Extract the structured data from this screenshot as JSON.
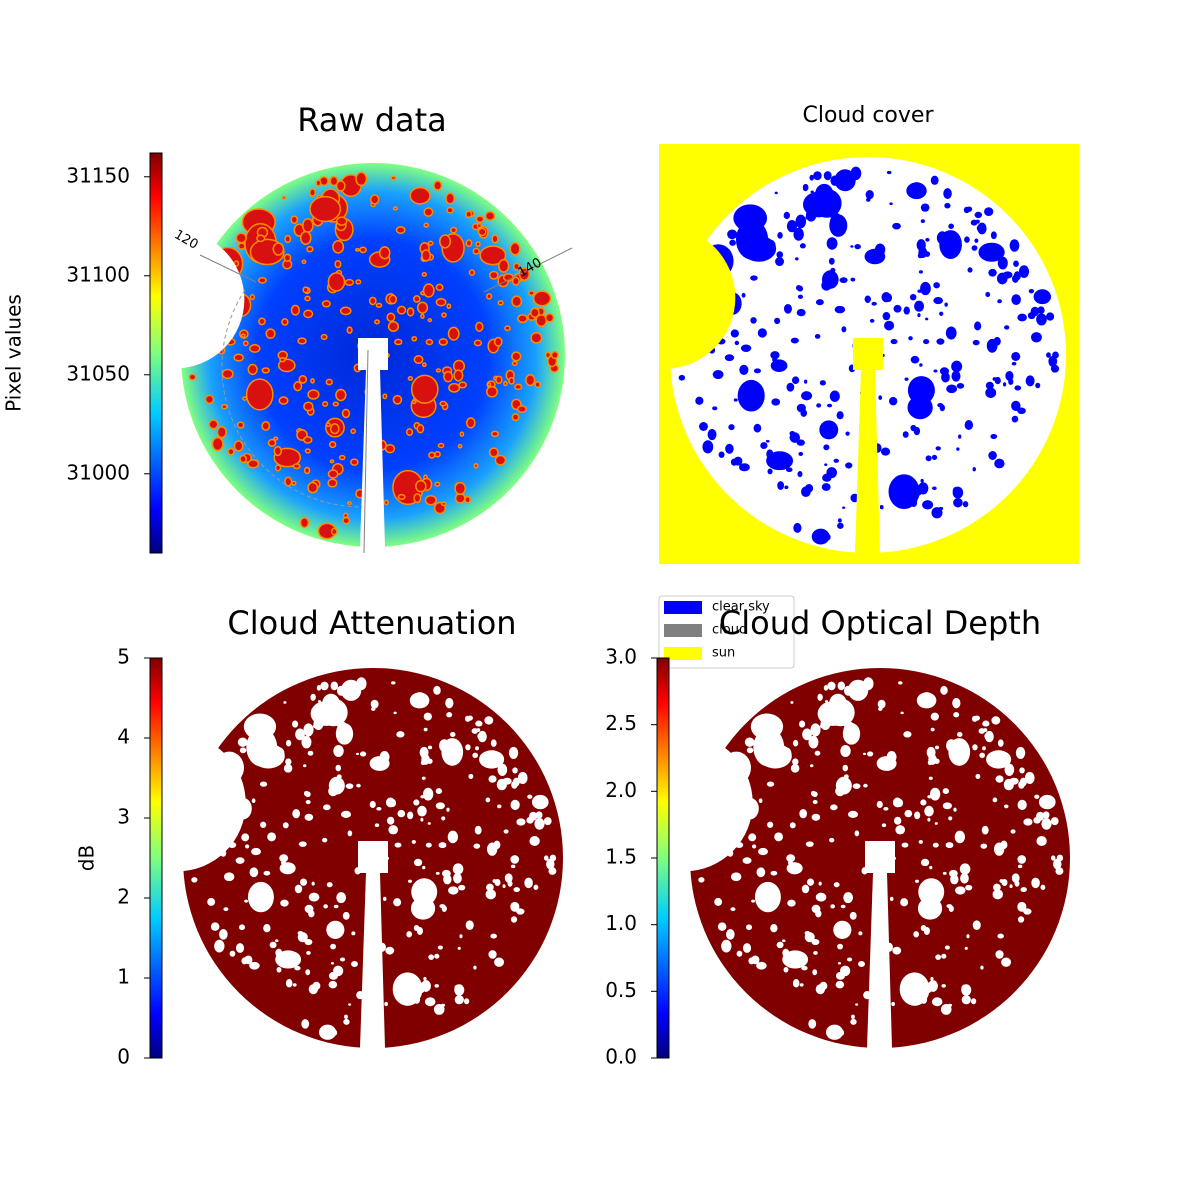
{
  "chart_data": [
    {
      "type": "image",
      "title": "Raw data",
      "colorbar_label": "Pixel values",
      "colormap": "jet",
      "ylim": [
        30960,
        31162
      ],
      "yticks": [
        31000,
        31050,
        31100,
        31150
      ],
      "annotations": [
        "120",
        "140"
      ]
    },
    {
      "type": "image",
      "title": "Cloud cover",
      "classes": [
        {
          "name": "clear sky",
          "color": "#0000ff"
        },
        {
          "name": "cloud",
          "color": "#808080"
        },
        {
          "name": "sun",
          "color": "#ffff00"
        }
      ]
    },
    {
      "type": "image",
      "title": "Cloud Attenuation",
      "colorbar_label": "dB",
      "colormap": "jet",
      "ylim": [
        0,
        5
      ],
      "yticks": [
        0,
        1,
        2,
        3,
        4,
        5
      ]
    },
    {
      "type": "image",
      "title": "Cloud Optical Depth",
      "colormap": "jet",
      "ylim": [
        0,
        3
      ],
      "yticks": [
        {
          "value": 0,
          "label": "0.0"
        },
        0.5,
        {
          "value": 1,
          "label": "1.0"
        },
        1.5,
        {
          "value": 2,
          "label": "2.0"
        },
        2.5,
        {
          "value": 3,
          "label": "3.0"
        }
      ]
    }
  ]
}
